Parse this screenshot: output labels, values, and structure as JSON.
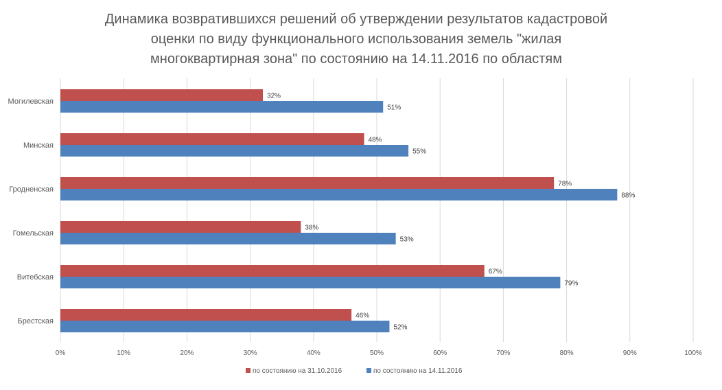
{
  "chart_data": {
    "type": "bar",
    "orientation": "horizontal",
    "title_lines": [
      "Динамика возвратившихся решений об утверждении результатов кадастровой",
      "оценки по виду функционального использования земель \"жилая",
      "многоквартирная зона\" по состоянию на 14.11.2016  по областям"
    ],
    "categories": [
      "Могилевская",
      "Минская",
      "Гродненская",
      "Гомельская",
      "Витебская",
      "Брестская"
    ],
    "series": [
      {
        "name": "по состоянию на 31.10.2016",
        "color": "#C0504D",
        "values": [
          32,
          48,
          78,
          38,
          67,
          46
        ]
      },
      {
        "name": "по состоянию на 14.11.2016",
        "color": "#4F81BD",
        "values": [
          51,
          55,
          88,
          53,
          79,
          52
        ]
      }
    ],
    "data_labels": [
      [
        "32%",
        "48%",
        "78%",
        "38%",
        "67%",
        "46%"
      ],
      [
        "51%",
        "55%",
        "88%",
        "53%",
        "79%",
        "52%"
      ]
    ],
    "xlim": [
      0,
      100
    ],
    "xticks": [
      "0%",
      "10%",
      "20%",
      "30%",
      "40%",
      "50%",
      "60%",
      "70%",
      "80%",
      "90%",
      "100%"
    ],
    "grid": true,
    "legend_position": "bottom",
    "xlabel": "",
    "ylabel": ""
  }
}
